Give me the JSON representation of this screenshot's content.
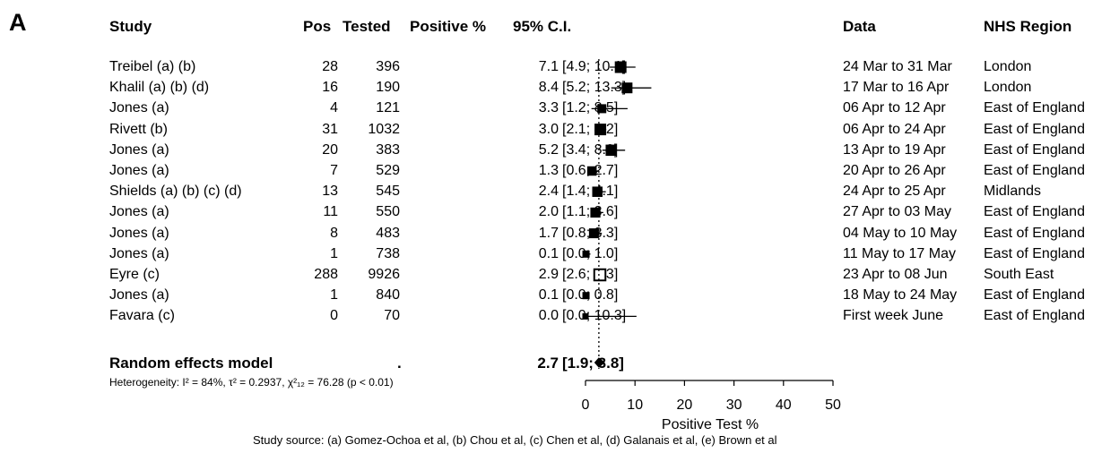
{
  "panel_label": "A",
  "headers": {
    "study": "Study",
    "pos": "Pos",
    "tested": "Tested",
    "pct": "Positive %",
    "ci": "95% C.I.",
    "data": "Data",
    "region": "NHS Region"
  },
  "chart_data": {
    "type": "forest",
    "xlabel": "Positive Test %",
    "xlim": [
      0,
      50
    ],
    "xticks": [
      0,
      10,
      20,
      30,
      40,
      50
    ],
    "reference_line": 2.7,
    "studies": [
      {
        "study": "Treibel   (a) (b)",
        "pos": "28",
        "tested": "396",
        "pct": "7.1",
        "ci": "[4.9; 10.1]",
        "est": 7.1,
        "lo": 4.9,
        "hi": 10.1,
        "weight": 0.8,
        "date": "24 Mar to 31 Mar",
        "region": "London"
      },
      {
        "study": "Khalil   (a) (b)  (d)",
        "pos": "16",
        "tested": "190",
        "pct": "8.4",
        "ci": "[5.2; 13.3]",
        "est": 8.4,
        "lo": 5.2,
        "hi": 13.3,
        "weight": 0.7,
        "date": "17 Mar to 16 Apr",
        "region": "London"
      },
      {
        "study": "Jones   (a)",
        "pos": "4",
        "tested": "121",
        "pct": "3.3",
        "ci": "[1.2;  8.5]",
        "est": 3.3,
        "lo": 1.2,
        "hi": 8.5,
        "weight": 0.5,
        "date": "06 Apr to 12 Apr",
        "region": "East of England"
      },
      {
        "study": "Rivett   (b)",
        "pos": "31",
        "tested": "1032",
        "pct": "3.0",
        "ci": "[2.1;  4.2]",
        "est": 3.0,
        "lo": 2.1,
        "hi": 4.2,
        "weight": 0.8,
        "date": "06 Apr to 24 Apr",
        "region": "East of England"
      },
      {
        "study": "Jones   (a)",
        "pos": "20",
        "tested": "383",
        "pct": "5.2",
        "ci": "[3.4;  8.0]",
        "est": 5.2,
        "lo": 3.4,
        "hi": 8.0,
        "weight": 0.75,
        "date": "13 Apr to 19 Apr",
        "region": "East of England"
      },
      {
        "study": "Jones   (a)",
        "pos": "7",
        "tested": "529",
        "pct": "1.3",
        "ci": "[0.6;  2.7]",
        "est": 1.3,
        "lo": 0.6,
        "hi": 2.7,
        "weight": 0.55,
        "date": "20 Apr to 26 Apr",
        "region": "East of England"
      },
      {
        "study": "Shields   (a) (b) (c) (d)",
        "pos": "13",
        "tested": "545",
        "pct": "2.4",
        "ci": "[1.4;  4.1]",
        "est": 2.4,
        "lo": 1.4,
        "hi": 4.1,
        "weight": 0.65,
        "date": "24 Apr to 25 Apr",
        "region": "Midlands"
      },
      {
        "study": "Jones   (a)",
        "pos": "11",
        "tested": "550",
        "pct": "2.0",
        "ci": "[1.1;  3.6]",
        "est": 2.0,
        "lo": 1.1,
        "hi": 3.6,
        "weight": 0.62,
        "date": "27 Apr to 03 May",
        "region": "East of England"
      },
      {
        "study": "Jones   (a)",
        "pos": "8",
        "tested": "483",
        "pct": "1.7",
        "ci": "[0.8;  3.3]",
        "est": 1.7,
        "lo": 0.8,
        "hi": 3.3,
        "weight": 0.6,
        "date": "04 May to 10 May",
        "region": "East of England"
      },
      {
        "study": "Jones   (a)",
        "pos": "1",
        "tested": "738",
        "pct": "0.1",
        "ci": "[0.0;  1.0]",
        "est": 0.1,
        "lo": 0.0,
        "hi": 1.0,
        "weight": 0.3,
        "date": "11 May to 17 May",
        "region": "East of England"
      },
      {
        "study": "Eyre   (c)",
        "pos": "288",
        "tested": "9926",
        "pct": "2.9",
        "ci": "[2.6;  3.3]",
        "est": 2.9,
        "lo": 2.6,
        "hi": 3.3,
        "weight": 0.85,
        "hollow": true,
        "date": "23 Apr to 08 Jun",
        "region": "South East"
      },
      {
        "study": "Jones   (a)",
        "pos": "1",
        "tested": "840",
        "pct": "0.1",
        "ci": "[0.0;  0.8]",
        "est": 0.1,
        "lo": 0.0,
        "hi": 0.8,
        "weight": 0.3,
        "date": "18 May to 24 May",
        "region": "East of England"
      },
      {
        "study": "Favara     (c)",
        "pos": "0",
        "tested": "70",
        "pct": "0.0",
        "ci": "[0.0; 10.3]",
        "est": 0.0,
        "lo": 0.0,
        "hi": 10.3,
        "weight": 0.2,
        "date": "First week June",
        "region": "East of England"
      }
    ],
    "summary": {
      "label": "Random effects model",
      "dot": ".",
      "pct": "2.7",
      "ci": "[1.9;  3.8]",
      "est": 2.7,
      "lo": 1.9,
      "hi": 3.8
    }
  },
  "heterogeneity": "Heterogeneity: I² = 84%, τ² = 0.2937, χ²₁₂ = 76.28 (p < 0.01)",
  "source": "Study source: (a) Gomez-Ochoa et al, (b) Chou et al, (c) Chen et al, (d) Galanais et al, (e) Brown et al"
}
